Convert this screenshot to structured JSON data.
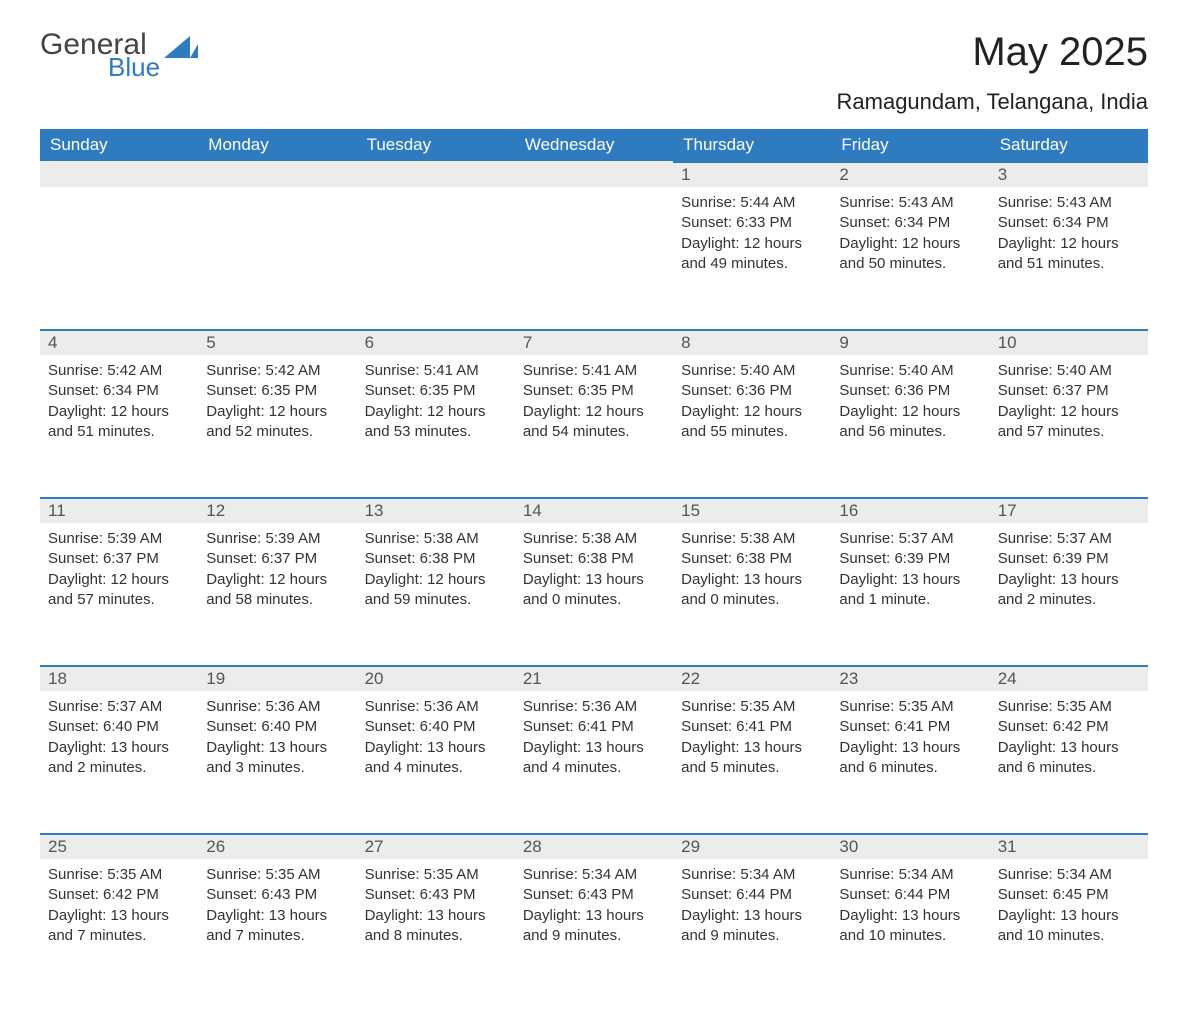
{
  "brand": {
    "word1": "General",
    "word2": "Blue",
    "word1_color": "#444444",
    "word2_color": "#2e7bbf",
    "triangle_color": "#2e7bbf"
  },
  "header": {
    "month_title": "May 2025",
    "location": "Ramagundam, Telangana, India"
  },
  "styling": {
    "header_bg": "#2e7bbf",
    "header_text": "#ffffff",
    "daynum_bg": "#ececec",
    "daynum_border": "#2e7bbf",
    "body_text": "#333333",
    "page_bg": "#ffffff",
    "font_family": "Segoe UI, Arial, sans-serif",
    "month_title_fontsize_pt": 30,
    "location_fontsize_pt": 16,
    "weekday_fontsize_pt": 13,
    "cell_fontsize_pt": 11
  },
  "weekdays": [
    "Sunday",
    "Monday",
    "Tuesday",
    "Wednesday",
    "Thursday",
    "Friday",
    "Saturday"
  ],
  "weeks": [
    [
      {
        "day": ""
      },
      {
        "day": ""
      },
      {
        "day": ""
      },
      {
        "day": ""
      },
      {
        "day": "1",
        "sunrise": "Sunrise: 5:44 AM",
        "sunset": "Sunset: 6:33 PM",
        "daylight": "Daylight: 12 hours and 49 minutes."
      },
      {
        "day": "2",
        "sunrise": "Sunrise: 5:43 AM",
        "sunset": "Sunset: 6:34 PM",
        "daylight": "Daylight: 12 hours and 50 minutes."
      },
      {
        "day": "3",
        "sunrise": "Sunrise: 5:43 AM",
        "sunset": "Sunset: 6:34 PM",
        "daylight": "Daylight: 12 hours and 51 minutes."
      }
    ],
    [
      {
        "day": "4",
        "sunrise": "Sunrise: 5:42 AM",
        "sunset": "Sunset: 6:34 PM",
        "daylight": "Daylight: 12 hours and 51 minutes."
      },
      {
        "day": "5",
        "sunrise": "Sunrise: 5:42 AM",
        "sunset": "Sunset: 6:35 PM",
        "daylight": "Daylight: 12 hours and 52 minutes."
      },
      {
        "day": "6",
        "sunrise": "Sunrise: 5:41 AM",
        "sunset": "Sunset: 6:35 PM",
        "daylight": "Daylight: 12 hours and 53 minutes."
      },
      {
        "day": "7",
        "sunrise": "Sunrise: 5:41 AM",
        "sunset": "Sunset: 6:35 PM",
        "daylight": "Daylight: 12 hours and 54 minutes."
      },
      {
        "day": "8",
        "sunrise": "Sunrise: 5:40 AM",
        "sunset": "Sunset: 6:36 PM",
        "daylight": "Daylight: 12 hours and 55 minutes."
      },
      {
        "day": "9",
        "sunrise": "Sunrise: 5:40 AM",
        "sunset": "Sunset: 6:36 PM",
        "daylight": "Daylight: 12 hours and 56 minutes."
      },
      {
        "day": "10",
        "sunrise": "Sunrise: 5:40 AM",
        "sunset": "Sunset: 6:37 PM",
        "daylight": "Daylight: 12 hours and 57 minutes."
      }
    ],
    [
      {
        "day": "11",
        "sunrise": "Sunrise: 5:39 AM",
        "sunset": "Sunset: 6:37 PM",
        "daylight": "Daylight: 12 hours and 57 minutes."
      },
      {
        "day": "12",
        "sunrise": "Sunrise: 5:39 AM",
        "sunset": "Sunset: 6:37 PM",
        "daylight": "Daylight: 12 hours and 58 minutes."
      },
      {
        "day": "13",
        "sunrise": "Sunrise: 5:38 AM",
        "sunset": "Sunset: 6:38 PM",
        "daylight": "Daylight: 12 hours and 59 minutes."
      },
      {
        "day": "14",
        "sunrise": "Sunrise: 5:38 AM",
        "sunset": "Sunset: 6:38 PM",
        "daylight": "Daylight: 13 hours and 0 minutes."
      },
      {
        "day": "15",
        "sunrise": "Sunrise: 5:38 AM",
        "sunset": "Sunset: 6:38 PM",
        "daylight": "Daylight: 13 hours and 0 minutes."
      },
      {
        "day": "16",
        "sunrise": "Sunrise: 5:37 AM",
        "sunset": "Sunset: 6:39 PM",
        "daylight": "Daylight: 13 hours and 1 minute."
      },
      {
        "day": "17",
        "sunrise": "Sunrise: 5:37 AM",
        "sunset": "Sunset: 6:39 PM",
        "daylight": "Daylight: 13 hours and 2 minutes."
      }
    ],
    [
      {
        "day": "18",
        "sunrise": "Sunrise: 5:37 AM",
        "sunset": "Sunset: 6:40 PM",
        "daylight": "Daylight: 13 hours and 2 minutes."
      },
      {
        "day": "19",
        "sunrise": "Sunrise: 5:36 AM",
        "sunset": "Sunset: 6:40 PM",
        "daylight": "Daylight: 13 hours and 3 minutes."
      },
      {
        "day": "20",
        "sunrise": "Sunrise: 5:36 AM",
        "sunset": "Sunset: 6:40 PM",
        "daylight": "Daylight: 13 hours and 4 minutes."
      },
      {
        "day": "21",
        "sunrise": "Sunrise: 5:36 AM",
        "sunset": "Sunset: 6:41 PM",
        "daylight": "Daylight: 13 hours and 4 minutes."
      },
      {
        "day": "22",
        "sunrise": "Sunrise: 5:35 AM",
        "sunset": "Sunset: 6:41 PM",
        "daylight": "Daylight: 13 hours and 5 minutes."
      },
      {
        "day": "23",
        "sunrise": "Sunrise: 5:35 AM",
        "sunset": "Sunset: 6:41 PM",
        "daylight": "Daylight: 13 hours and 6 minutes."
      },
      {
        "day": "24",
        "sunrise": "Sunrise: 5:35 AM",
        "sunset": "Sunset: 6:42 PM",
        "daylight": "Daylight: 13 hours and 6 minutes."
      }
    ],
    [
      {
        "day": "25",
        "sunrise": "Sunrise: 5:35 AM",
        "sunset": "Sunset: 6:42 PM",
        "daylight": "Daylight: 13 hours and 7 minutes."
      },
      {
        "day": "26",
        "sunrise": "Sunrise: 5:35 AM",
        "sunset": "Sunset: 6:43 PM",
        "daylight": "Daylight: 13 hours and 7 minutes."
      },
      {
        "day": "27",
        "sunrise": "Sunrise: 5:35 AM",
        "sunset": "Sunset: 6:43 PM",
        "daylight": "Daylight: 13 hours and 8 minutes."
      },
      {
        "day": "28",
        "sunrise": "Sunrise: 5:34 AM",
        "sunset": "Sunset: 6:43 PM",
        "daylight": "Daylight: 13 hours and 9 minutes."
      },
      {
        "day": "29",
        "sunrise": "Sunrise: 5:34 AM",
        "sunset": "Sunset: 6:44 PM",
        "daylight": "Daylight: 13 hours and 9 minutes."
      },
      {
        "day": "30",
        "sunrise": "Sunrise: 5:34 AM",
        "sunset": "Sunset: 6:44 PM",
        "daylight": "Daylight: 13 hours and 10 minutes."
      },
      {
        "day": "31",
        "sunrise": "Sunrise: 5:34 AM",
        "sunset": "Sunset: 6:45 PM",
        "daylight": "Daylight: 13 hours and 10 minutes."
      }
    ]
  ]
}
